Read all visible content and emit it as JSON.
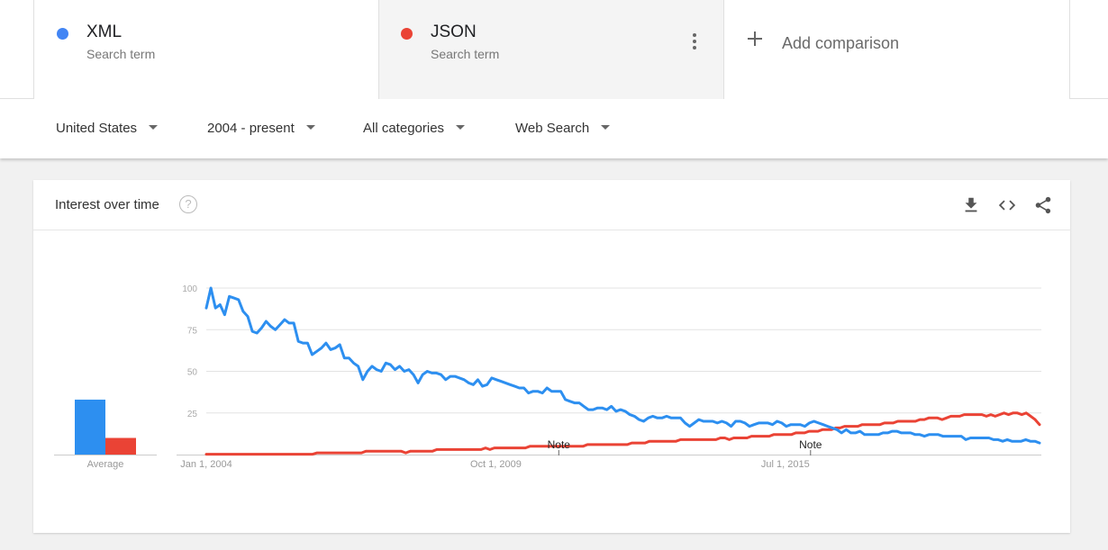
{
  "terms": [
    {
      "name": "XML",
      "sub": "Search term",
      "color": "#4285f4"
    },
    {
      "name": "JSON",
      "sub": "Search term",
      "color": "#ea4335"
    }
  ],
  "add_comparison": "Add comparison",
  "filters": {
    "region": "United States",
    "time": "2004 - present",
    "category": "All categories",
    "search_type": "Web Search"
  },
  "card": {
    "title": "Interest over time",
    "help": "?",
    "icons": [
      "download-icon",
      "embed-icon",
      "share-icon"
    ]
  },
  "average": {
    "label": "Average",
    "xml": 33,
    "json": 10
  },
  "chart_data": {
    "type": "line",
    "x_start": "2004-01",
    "x_end": "2020-08",
    "x_ticks": [
      {
        "label": "Jan 1, 2004",
        "date": "2004-01"
      },
      {
        "label": "Oct 1, 2009",
        "date": "2009-10"
      },
      {
        "label": "Jul 1, 2015",
        "date": "2015-07"
      }
    ],
    "y_ticks": [
      25,
      50,
      75,
      100
    ],
    "ylim": [
      0,
      100
    ],
    "grid": true,
    "notes": [
      {
        "label": "Note",
        "date": "2011-01"
      },
      {
        "label": "Note",
        "date": "2016-01"
      }
    ],
    "series": [
      {
        "name": "XML",
        "color": "#2d8ff0",
        "values": [
          88,
          100,
          88,
          90,
          84,
          95,
          94,
          93,
          86,
          83,
          74,
          73,
          76,
          80,
          77,
          75,
          78,
          81,
          79,
          79,
          68,
          67,
          67,
          60,
          62,
          64,
          67,
          63,
          64,
          66,
          58,
          58,
          55,
          53,
          45,
          50,
          53,
          51,
          50,
          55,
          54,
          51,
          53,
          50,
          51,
          48,
          43,
          48,
          50,
          49,
          49,
          48,
          45,
          47,
          47,
          46,
          45,
          43,
          42,
          45,
          41,
          42,
          46,
          45,
          44,
          43,
          42,
          41,
          40,
          40,
          37,
          38,
          38,
          37,
          40,
          38,
          38,
          38,
          33,
          32,
          31,
          31,
          29,
          27,
          27,
          28,
          28,
          27,
          29,
          26,
          27,
          26,
          24,
          23,
          21,
          20,
          22,
          23,
          22,
          22,
          23,
          22,
          22,
          22,
          19,
          17,
          19,
          21,
          20,
          20,
          20,
          19,
          20,
          19,
          17,
          20,
          20,
          19,
          17,
          18,
          19,
          19,
          19,
          18,
          20,
          19,
          17,
          18,
          18,
          18,
          17,
          19,
          20,
          19,
          18,
          17,
          16,
          15,
          13,
          15,
          13,
          13,
          14,
          12,
          12,
          12,
          12,
          13,
          13,
          14,
          14,
          13,
          13,
          13,
          12,
          12,
          11,
          12,
          12,
          12,
          11,
          11,
          11,
          11,
          11,
          9,
          10,
          10,
          10,
          10,
          10,
          9,
          9,
          8,
          9,
          8,
          8,
          8,
          9,
          8,
          8,
          7
        ]
      },
      {
        "name": "JSON",
        "color": "#ea4335",
        "values": [
          0,
          0,
          0,
          0,
          0,
          0,
          0,
          0,
          0,
          0,
          0,
          0,
          0,
          0,
          0,
          0,
          0,
          0,
          0,
          0,
          0,
          0,
          0,
          0,
          0,
          1,
          1,
          1,
          1,
          1,
          1,
          1,
          1,
          1,
          1,
          1,
          2,
          2,
          2,
          2,
          2,
          2,
          2,
          2,
          2,
          1,
          2,
          2,
          2,
          2,
          2,
          2,
          3,
          3,
          3,
          3,
          3,
          3,
          3,
          3,
          3,
          3,
          3,
          4,
          3,
          4,
          4,
          4,
          4,
          4,
          4,
          4,
          4,
          5,
          5,
          5,
          5,
          5,
          5,
          5,
          5,
          5,
          5,
          5,
          5,
          5,
          6,
          6,
          6,
          6,
          6,
          6,
          6,
          6,
          6,
          6,
          7,
          7,
          7,
          7,
          8,
          8,
          8,
          8,
          8,
          8,
          8,
          9,
          9,
          9,
          9,
          9,
          9,
          9,
          9,
          9,
          10,
          10,
          9,
          10,
          10,
          10,
          10,
          11,
          11,
          11,
          11,
          11,
          12,
          12,
          12,
          12,
          12,
          13,
          13,
          13,
          14,
          14,
          14,
          15,
          15,
          15,
          16,
          16,
          17,
          17,
          17,
          17,
          18,
          18,
          18,
          18,
          18,
          19,
          19,
          19,
          20,
          20,
          20,
          20,
          20,
          21,
          21,
          22,
          22,
          22,
          21,
          22,
          23,
          23,
          23,
          24,
          24,
          24,
          24,
          24,
          23,
          24,
          23,
          24,
          25,
          24,
          25,
          25,
          24,
          25,
          23,
          21,
          18
        ]
      }
    ]
  }
}
